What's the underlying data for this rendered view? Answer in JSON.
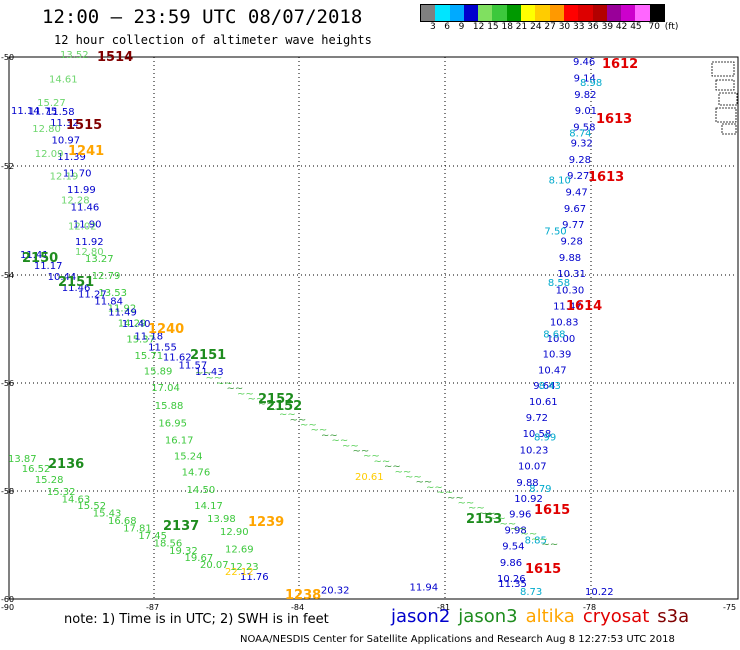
{
  "header": {
    "title": "12:00 – 23:59 UTC 08/07/2018",
    "subtitle": "12 hour collection of altimeter wave heights"
  },
  "colorbar": {
    "colors": [
      "#808080",
      "#00e5ff",
      "#00aaff",
      "#0000cd",
      "#80e060",
      "#3cc83c",
      "#009900",
      "#ffff00",
      "#ffcc00",
      "#ff9900",
      "#ff0000",
      "#dd0000",
      "#b30000",
      "#990099",
      "#cc00cc",
      "#ff66ff",
      "#000000"
    ],
    "ticks": [
      "3",
      "6",
      "9",
      "12",
      "15",
      "18",
      "21",
      "24",
      "27",
      "30",
      "33",
      "36",
      "39",
      "42",
      "45",
      "70",
      "(ft)"
    ]
  },
  "map": {
    "x_ticks": [
      "-90",
      "-87",
      "-84",
      "-81",
      "-78",
      "-75"
    ],
    "y_ticks": [
      "-50",
      "-52",
      "-54",
      "-56",
      "-58",
      "-60"
    ],
    "colors": {
      "jason2": "#0000cc",
      "jason3": "#1e8c1e",
      "altika": "#ffa500",
      "cryosat": "#e00000",
      "s3a": "#800000"
    },
    "tracks": [
      {
        "name": "blue-upper-left",
        "color": "#0000cc",
        "labels": [
          "11.14",
          "11.75",
          "11.58",
          "11.32",
          "10.97",
          "11.39",
          "11.70",
          "11.99",
          "11.46",
          "11.90",
          "11.92"
        ]
      },
      {
        "name": "green-upper-left",
        "color": "#6dd66d",
        "labels": [
          "13.52",
          "14.61",
          "15.27",
          "12.80",
          "12.09",
          "12.19",
          "12.28",
          "12.02",
          "12.80"
        ]
      },
      {
        "name": "green-diag-1",
        "color": "#3cc83c",
        "labels": [
          "13.27",
          "12.79",
          "13.53",
          "11.92",
          "14.29",
          "15.37",
          "15.71",
          "15.89",
          "17.04",
          "15.88",
          "16.95",
          "16.17",
          "15.24",
          "14.76",
          "14.50",
          "14.17",
          "13.98",
          "12.90",
          "12.69",
          "12.23"
        ]
      },
      {
        "name": "blue-diag-1",
        "color": "#0000cc",
        "labels": [
          "11.41",
          "11.17",
          "10.44",
          "11.46",
          "11.27",
          "11.84",
          "11.49",
          "11.40",
          "11.18",
          "11.55",
          "11.62",
          "11.57",
          "11.43"
        ]
      },
      {
        "name": "green-lower-left",
        "color": "#3cc83c",
        "labels": [
          "13.87",
          "16.52",
          "15.28",
          "15.32",
          "14.63",
          "15.52",
          "15.43",
          "16.68",
          "17.81",
          "17.45",
          "18.56",
          "19.32",
          "19.67",
          "20.07"
        ]
      },
      {
        "name": "blue-right-track",
        "color": "#0000cc",
        "labels": [
          "9.46",
          "9.14",
          "9.82",
          "9.01",
          "9.58",
          "9.32",
          "9.28",
          "9.27",
          "9.47",
          "9.67",
          "9.77",
          "9.28",
          "9.88",
          "10.31",
          "10.30",
          "11.47",
          "10.83",
          "10.00",
          "10.39",
          "10.47",
          "9.64",
          "10.61",
          "9.72",
          "10.58",
          "10.23",
          "10.07",
          "9.88",
          "10.92",
          "9.96",
          "9.98",
          "9.54",
          "9.86",
          "10.26"
        ]
      },
      {
        "name": "cyan-right-track",
        "color": "#00aacc",
        "labels": [
          "8.98",
          "8.74",
          "8.10",
          "7.50",
          "8.58",
          "8.68",
          "8.43",
          "8.99",
          "8.79",
          "8.85",
          "8.73"
        ]
      },
      {
        "name": "bottom-labels",
        "color": "#0000cc",
        "labels": [
          "11.76",
          "20.32",
          "11.94",
          "11.35",
          "10.22"
        ]
      },
      {
        "name": "yellow-bits",
        "color": "#ffcc00",
        "labels": [
          "20.61",
          "22.12"
        ]
      }
    ],
    "passes": [
      {
        "text": "1514",
        "color": "#800000"
      },
      {
        "text": "1515",
        "color": "#800000"
      },
      {
        "text": "1241",
        "color": "#ffa500"
      },
      {
        "text": "2150",
        "color": "#1e8c1e"
      },
      {
        "text": "2151",
        "color": "#1e8c1e"
      },
      {
        "text": "1240",
        "color": "#ffa500"
      },
      {
        "text": "2151",
        "color": "#1e8c1e"
      },
      {
        "text": "2152",
        "color": "#1e8c1e"
      },
      {
        "text": "2152",
        "color": "#1e8c1e"
      },
      {
        "text": "2136",
        "color": "#1e8c1e"
      },
      {
        "text": "2137",
        "color": "#1e8c1e"
      },
      {
        "text": "1239",
        "color": "#ffa500"
      },
      {
        "text": "2153",
        "color": "#1e8c1e"
      },
      {
        "text": "1238",
        "color": "#ffa500"
      },
      {
        "text": "1612",
        "color": "#e00000"
      },
      {
        "text": "1613",
        "color": "#e00000"
      },
      {
        "text": "1613",
        "color": "#e00000"
      },
      {
        "text": "1614",
        "color": "#e00000"
      },
      {
        "text": "1615",
        "color": "#e00000"
      },
      {
        "text": "1615",
        "color": "#e00000"
      }
    ]
  },
  "legend": {
    "note": "note: 1) Time is in UTC; 2) SWH is in feet",
    "sats": [
      {
        "name": "jason2",
        "color": "#0000cc"
      },
      {
        "name": "jason3",
        "color": "#1e8c1e"
      },
      {
        "name": "altika",
        "color": "#ffa500"
      },
      {
        "name": "cryosat",
        "color": "#e00000"
      },
      {
        "name": "s3a",
        "color": "#800000"
      }
    ]
  },
  "footer": {
    "credit": "NOAA/NESDIS Center for Satellite Applications and Research    Aug  8 12:27:53 UTC 2018"
  }
}
